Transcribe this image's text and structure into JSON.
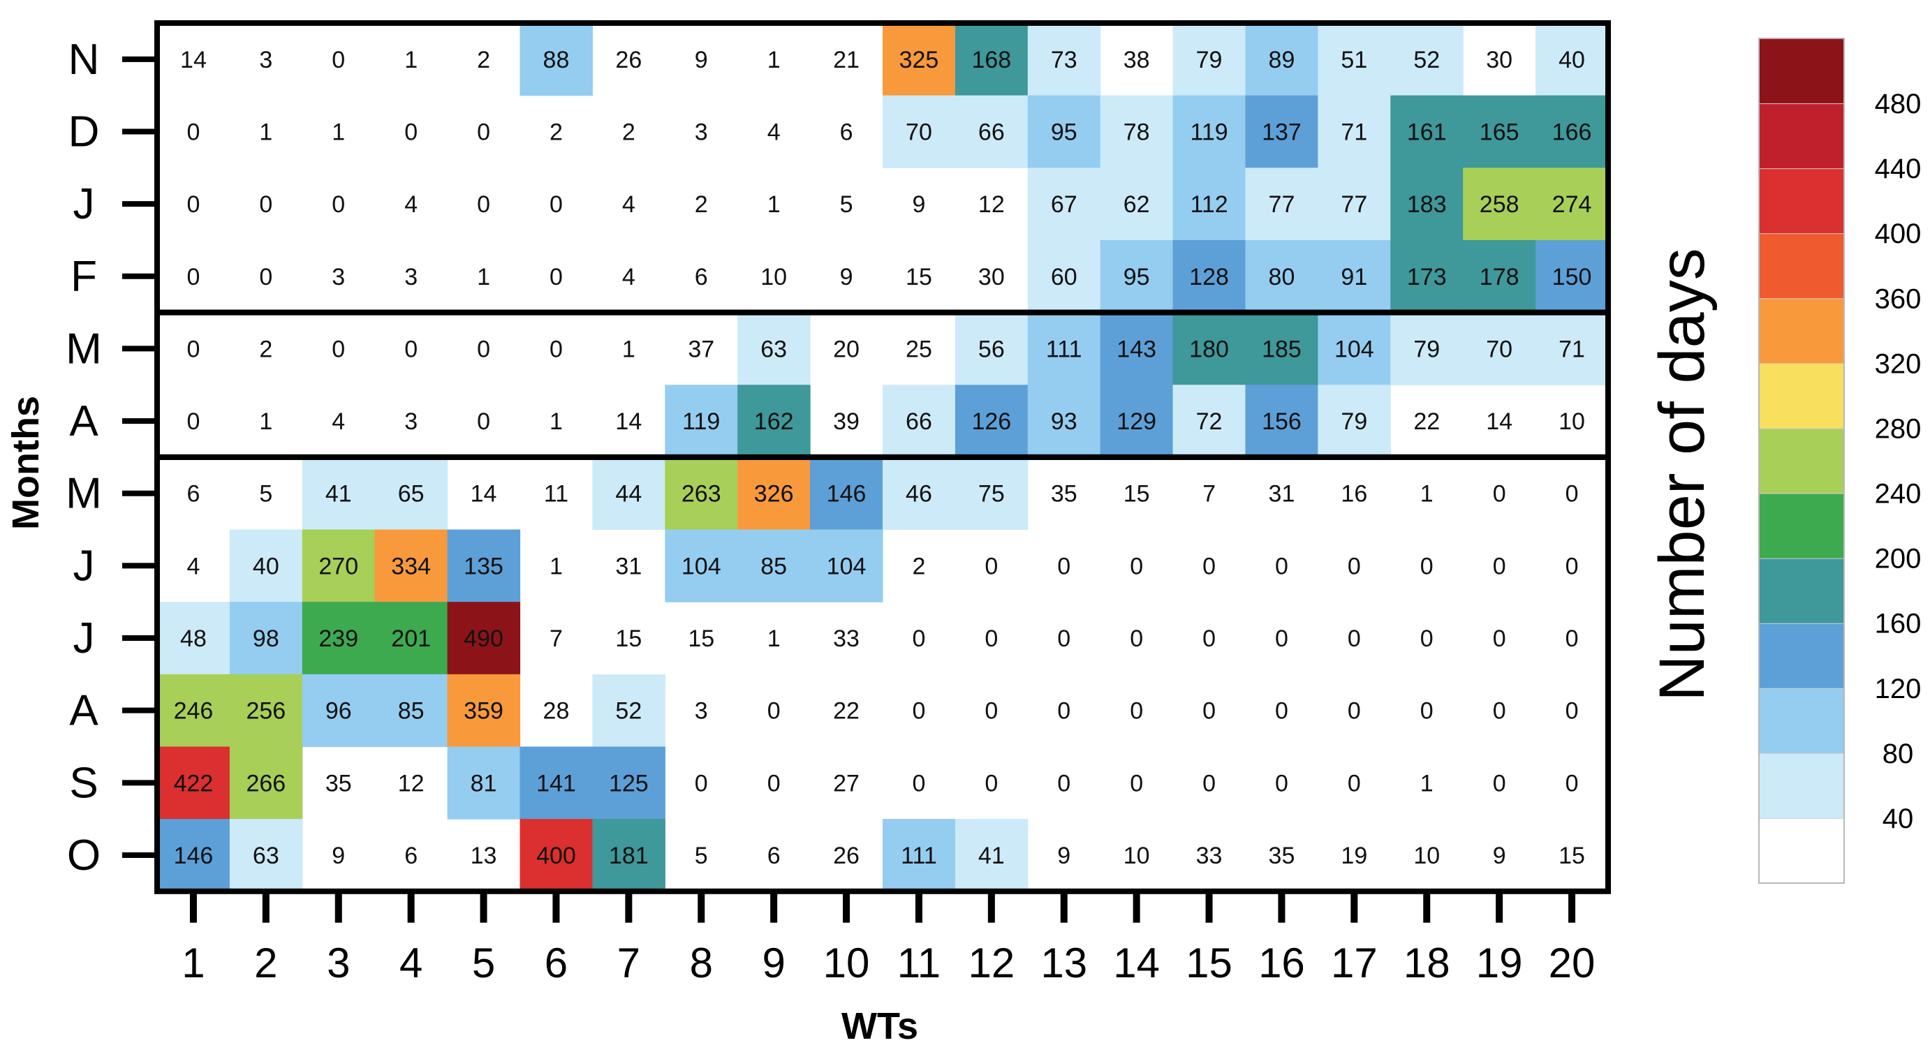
{
  "chart_data": {
    "type": "heatmap",
    "xlabel": "WTs",
    "ylabel": "Months",
    "x_categories": [
      "1",
      "2",
      "3",
      "4",
      "5",
      "6",
      "7",
      "8",
      "9",
      "10",
      "11",
      "12",
      "13",
      "14",
      "15",
      "16",
      "17",
      "18",
      "19",
      "20"
    ],
    "y_categories": [
      "N",
      "D",
      "J",
      "F",
      "M",
      "A",
      "M",
      "J",
      "J",
      "A",
      "S",
      "O"
    ],
    "values": [
      [
        14,
        3,
        0,
        1,
        2,
        88,
        26,
        9,
        1,
        21,
        325,
        168,
        73,
        38,
        79,
        89,
        51,
        52,
        30,
        40
      ],
      [
        0,
        1,
        1,
        0,
        0,
        2,
        2,
        3,
        4,
        6,
        70,
        66,
        95,
        78,
        119,
        137,
        71,
        161,
        165,
        166
      ],
      [
        0,
        0,
        0,
        4,
        0,
        0,
        4,
        2,
        1,
        5,
        9,
        12,
        67,
        62,
        112,
        77,
        77,
        183,
        258,
        274
      ],
      [
        0,
        0,
        3,
        3,
        1,
        0,
        4,
        6,
        10,
        9,
        15,
        30,
        60,
        95,
        128,
        80,
        91,
        173,
        178,
        150
      ],
      [
        0,
        2,
        0,
        0,
        0,
        0,
        1,
        37,
        63,
        20,
        25,
        56,
        111,
        143,
        180,
        185,
        104,
        79,
        70,
        71
      ],
      [
        0,
        1,
        4,
        3,
        0,
        1,
        14,
        119,
        162,
        39,
        66,
        126,
        93,
        129,
        72,
        156,
        79,
        22,
        14,
        10
      ],
      [
        6,
        5,
        41,
        65,
        14,
        11,
        44,
        263,
        326,
        146,
        46,
        75,
        35,
        15,
        7,
        31,
        16,
        1,
        0,
        0
      ],
      [
        4,
        40,
        270,
        334,
        135,
        1,
        31,
        104,
        85,
        104,
        2,
        0,
        0,
        0,
        0,
        0,
        0,
        0,
        0,
        0
      ],
      [
        48,
        98,
        239,
        201,
        490,
        7,
        15,
        15,
        1,
        33,
        0,
        0,
        0,
        0,
        0,
        0,
        0,
        0,
        0,
        0
      ],
      [
        246,
        256,
        96,
        85,
        359,
        28,
        52,
        3,
        0,
        22,
        0,
        0,
        0,
        0,
        0,
        0,
        0,
        0,
        0,
        0
      ],
      [
        422,
        266,
        35,
        12,
        81,
        141,
        125,
        0,
        0,
        27,
        0,
        0,
        0,
        0,
        0,
        0,
        0,
        1,
        0,
        0
      ],
      [
        146,
        63,
        9,
        6,
        13,
        400,
        181,
        5,
        6,
        26,
        111,
        41,
        9,
        10,
        33,
        35,
        19,
        10,
        9,
        15
      ]
    ],
    "season_groups": [
      {
        "rows": [
          0,
          3
        ]
      },
      {
        "rows": [
          4,
          5
        ]
      },
      {
        "rows": [
          6,
          11
        ]
      }
    ],
    "colorbar": {
      "title": "Number of days",
      "boundaries": [
        0,
        40,
        80,
        120,
        160,
        200,
        240,
        280,
        320,
        360,
        400,
        440,
        480,
        520
      ],
      "colors": [
        "#ffffff",
        "#cdeaf8",
        "#94cdf0",
        "#5da0d8",
        "#3f9899",
        "#3daa50",
        "#a8cf58",
        "#f8df5e",
        "#f8993c",
        "#ef5a2e",
        "#dc2f2f",
        "#c0202c",
        "#8c1419"
      ],
      "tick_labels": [
        "40",
        "80",
        "120",
        "160",
        "200",
        "240",
        "280",
        "320",
        "360",
        "400",
        "440",
        "480"
      ]
    }
  }
}
